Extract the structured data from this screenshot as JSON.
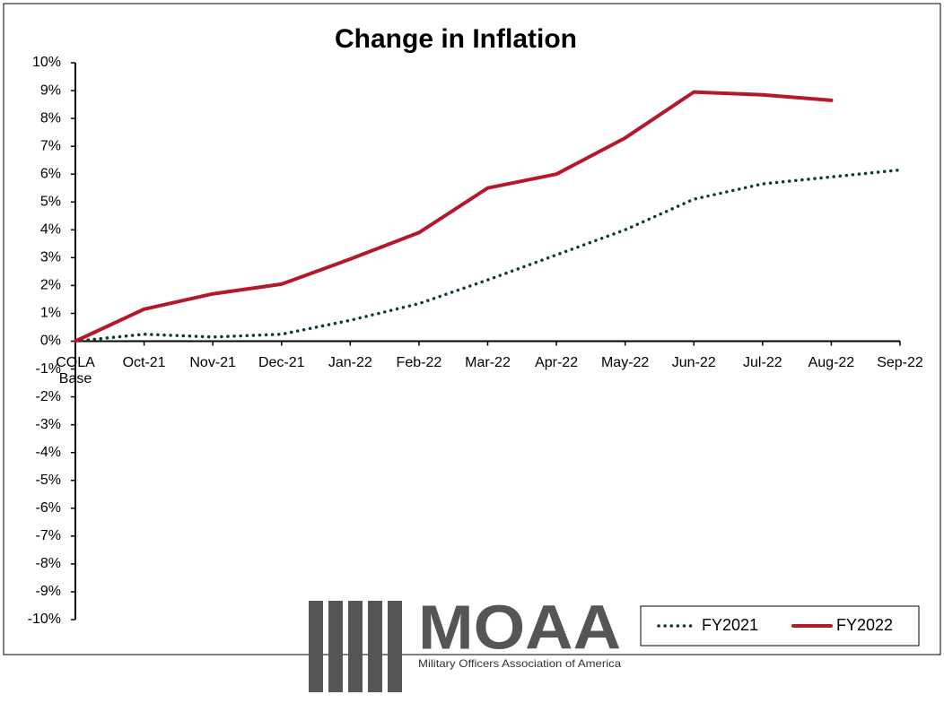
{
  "chart_data": {
    "type": "line",
    "title": "Change in Inflation",
    "categories": [
      "COLA Base",
      "Oct-21",
      "Nov-21",
      "Dec-21",
      "Jan-22",
      "Feb-22",
      "Mar-22",
      "Apr-22",
      "May-22",
      "Jun-22",
      "Jul-22",
      "Aug-22",
      "Sep-22"
    ],
    "series": [
      {
        "name": "FY2021",
        "color": "#0d3b3b",
        "dotted": true,
        "values": [
          0,
          0.25,
          0.15,
          0.25,
          0.75,
          1.35,
          2.2,
          3.1,
          4.0,
          5.1,
          5.65,
          5.9,
          6.15
        ]
      },
      {
        "name": "FY2022",
        "color": "#b5182a",
        "dotted": false,
        "values": [
          0,
          1.15,
          1.7,
          2.05,
          2.95,
          3.9,
          5.5,
          6.0,
          7.3,
          8.95,
          8.85,
          8.65,
          null
        ]
      }
    ],
    "ylim": [
      -10,
      10
    ],
    "yticks": [
      {
        "value": -10,
        "label": "-10%"
      },
      {
        "value": -9,
        "label": "-9%"
      },
      {
        "value": -8,
        "label": "-8%"
      },
      {
        "value": -7,
        "label": "-7%"
      },
      {
        "value": -6,
        "label": "-6%"
      },
      {
        "value": -5,
        "label": "-5%"
      },
      {
        "value": -4,
        "label": "-4%"
      },
      {
        "value": -3,
        "label": "-3%"
      },
      {
        "value": -2,
        "label": "-2%"
      },
      {
        "value": -1,
        "label": "-1%"
      },
      {
        "value": 0,
        "label": "0%"
      },
      {
        "value": 1,
        "label": "1%"
      },
      {
        "value": 2,
        "label": "2%"
      },
      {
        "value": 3,
        "label": "3%"
      },
      {
        "value": 4,
        "label": "4%"
      },
      {
        "value": 5,
        "label": "5%"
      },
      {
        "value": 6,
        "label": "6%"
      },
      {
        "value": 7,
        "label": "7%"
      },
      {
        "value": 8,
        "label": "8%"
      },
      {
        "value": 9,
        "label": "9%"
      },
      {
        "value": 10,
        "label": "10%"
      }
    ],
    "grid": false,
    "legend": "lower right",
    "logo": {
      "name": "MOAA",
      "tagline": "Military Officers Association of America"
    }
  }
}
